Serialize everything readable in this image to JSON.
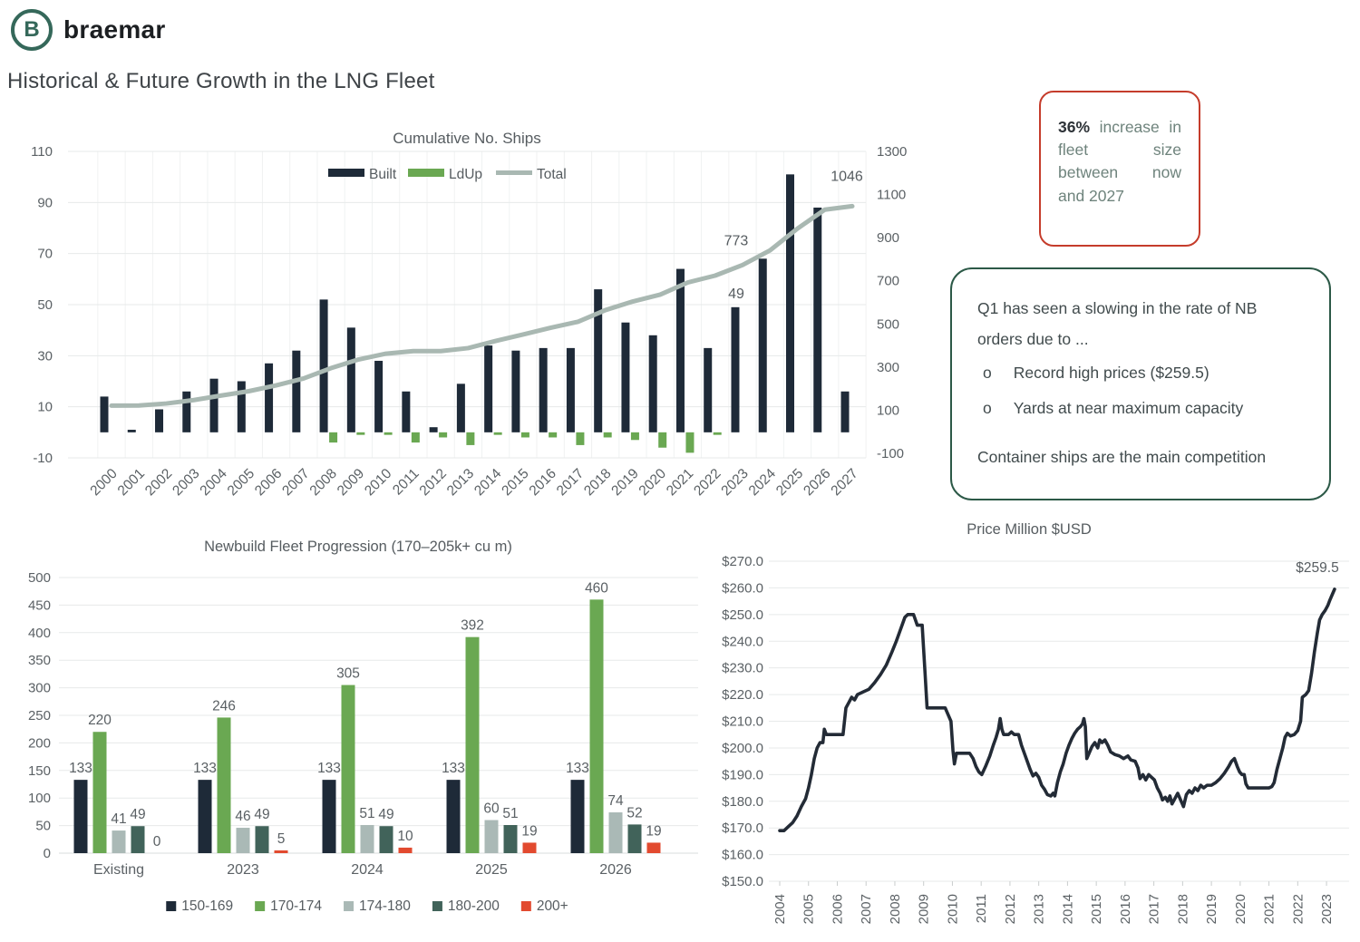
{
  "brand": {
    "logo_text": "braemar",
    "logo_letter": "B",
    "logo_icon": "braemar-b-icon",
    "logo_color": "#35685a"
  },
  "page_title": "Historical & Future Growth in the LNG Fleet",
  "callouts": {
    "fleet_growth": {
      "highlight": "36%",
      "text": "increase in fleet size between now and 2027",
      "border_color": "#c53c2b"
    },
    "nb_orders": {
      "intro": "Q1 has seen a slowing in the rate of NB orders due to ...",
      "bullet_marker": "o",
      "bullets": [
        "Record high prices ($259.5)",
        "Yards at near maximum capacity"
      ],
      "footer": "Container ships are the main competition",
      "border_color": "#2c5947"
    }
  },
  "colors": {
    "navy": "#1e2a38",
    "green": "#6aa852",
    "total_line": "#a9b8b2",
    "light_gray_bar": "#aab9b6",
    "dark_green_bar": "#41635a",
    "red_bar": "#e24a2f",
    "axis_text": "#5b6165",
    "gridline": "#e7eaea",
    "price_line": "#232b36"
  },
  "chart_data": [
    {
      "id": "cumulative_ships",
      "type": "bar+line",
      "title": "Cumulative No. Ships",
      "legend": [
        "Built",
        "LdUp",
        "Total"
      ],
      "categories": [
        "2000",
        "2001",
        "2002",
        "2003",
        "2004",
        "2005",
        "2006",
        "2007",
        "2008",
        "2009",
        "2010",
        "2011",
        "2012",
        "2013",
        "2014",
        "2015",
        "2016",
        "2017",
        "2018",
        "2019",
        "2020",
        "2021",
        "2022",
        "2023",
        "2024",
        "2025",
        "2026",
        "2027"
      ],
      "series": [
        {
          "name": "Built",
          "type": "bar",
          "axis": "left",
          "color": "#1e2a38",
          "values": [
            14,
            1,
            9,
            16,
            21,
            20,
            27,
            32,
            52,
            41,
            28,
            16,
            2,
            19,
            34,
            32,
            33,
            33,
            56,
            43,
            38,
            64,
            33,
            49,
            68,
            101,
            88,
            16
          ]
        },
        {
          "name": "LdUp",
          "type": "bar",
          "axis": "left",
          "color": "#6aa852",
          "values": [
            0,
            0,
            0,
            0,
            0,
            0,
            0,
            0,
            -4,
            -1,
            -1,
            -4,
            -2,
            -5,
            -1,
            -2,
            -2,
            -5,
            -2,
            -3,
            -6,
            -8,
            -1,
            0,
            0,
            0,
            0,
            0
          ]
        },
        {
          "name": "Total",
          "type": "line",
          "axis": "right",
          "color": "#a9b8b2",
          "values": [
            121,
            122,
            131,
            147,
            168,
            188,
            215,
            247,
            295,
            335,
            362,
            374,
            374,
            388,
            421,
            451,
            482,
            510,
            564,
            604,
            636,
            692,
            724,
            773,
            841,
            942,
            1030,
            1046
          ]
        }
      ],
      "left_axis": {
        "min": -10,
        "max": 110,
        "ticks": [
          110,
          90,
          70,
          50,
          30,
          10,
          -10
        ]
      },
      "right_axis": {
        "min": -100,
        "max": 1300,
        "ticks": [
          1300,
          1100,
          900,
          700,
          500,
          300,
          100,
          -100
        ]
      },
      "annotations": [
        {
          "text": "773",
          "category": "2023",
          "anchor": "line"
        },
        {
          "text": "49",
          "category": "2023",
          "anchor": "bar"
        },
        {
          "text": "1046",
          "category": "2027",
          "anchor": "line-end"
        }
      ]
    },
    {
      "id": "newbuild_progression",
      "type": "bar",
      "title": "Newbuild Fleet Progression (170–205k+ cu m)",
      "categories": [
        "Existing",
        "2023",
        "2024",
        "2025",
        "2026"
      ],
      "series": [
        {
          "name": "150-169",
          "color": "#1e2a38",
          "values": [
            133,
            133,
            133,
            133,
            133
          ]
        },
        {
          "name": "170-174",
          "color": "#6aa852",
          "values": [
            220,
            246,
            305,
            392,
            460
          ]
        },
        {
          "name": "174-180",
          "color": "#aab9b6",
          "values": [
            41,
            46,
            51,
            60,
            74
          ]
        },
        {
          "name": "180-200",
          "color": "#41635a",
          "values": [
            49,
            49,
            49,
            51,
            52
          ]
        },
        {
          "name": "200+",
          "color": "#e24a2f",
          "values": [
            0,
            5,
            10,
            19,
            19
          ]
        }
      ],
      "ylim": [
        0,
        500
      ],
      "ytick_step": 50,
      "show_value_labels": true,
      "legend_position": "bottom",
      "grid": true
    },
    {
      "id": "newbuild_price",
      "type": "line",
      "title": "Price Million $USD",
      "color": "#232b36",
      "ylim": [
        150,
        270
      ],
      "y_tick_values": [
        270,
        260,
        250,
        240,
        230,
        220,
        210,
        200,
        190,
        180,
        170,
        160,
        150
      ],
      "y_tick_labels": [
        "$270.0",
        "$260.0",
        "$250.0",
        "$240.0",
        "$230.0",
        "$220.0",
        "$210.0",
        "$200.0",
        "$190.0",
        "$180.0",
        "$170.0",
        "$160.0",
        "$150.0"
      ],
      "x_tick_values": [
        2004,
        2005,
        2006,
        2007,
        2008,
        2009,
        2010,
        2011,
        2012,
        2013,
        2014,
        2015,
        2016,
        2017,
        2018,
        2019,
        2020,
        2021,
        2022,
        2023
      ],
      "x_tick_labels": [
        "2004",
        "2005",
        "2006",
        "2007",
        "2008",
        "2009",
        "2010",
        "2011",
        "2012",
        "2013",
        "2014",
        "2015",
        "2016",
        "2017",
        "2018",
        "2019",
        "2020",
        "2021",
        "2022",
        "2023"
      ],
      "annotation": {
        "text": "$259.5",
        "value": 259.5
      },
      "points": [
        [
          2004.0,
          169
        ],
        [
          2004.15,
          169
        ],
        [
          2004.3,
          170.5
        ],
        [
          2004.45,
          172
        ],
        [
          2004.6,
          174.5
        ],
        [
          2004.75,
          178
        ],
        [
          2004.9,
          181
        ],
        [
          2005.0,
          185
        ],
        [
          2005.1,
          190
        ],
        [
          2005.2,
          196
        ],
        [
          2005.3,
          200
        ],
        [
          2005.4,
          202
        ],
        [
          2005.5,
          202
        ],
        [
          2005.55,
          207
        ],
        [
          2005.62,
          205
        ],
        [
          2005.8,
          205
        ],
        [
          2006.0,
          205
        ],
        [
          2006.2,
          205
        ],
        [
          2006.3,
          215
        ],
        [
          2006.4,
          217
        ],
        [
          2006.5,
          219
        ],
        [
          2006.6,
          218
        ],
        [
          2006.7,
          220
        ],
        [
          2006.9,
          221
        ],
        [
          2007.1,
          222
        ],
        [
          2007.3,
          224.5
        ],
        [
          2007.5,
          227.5
        ],
        [
          2007.7,
          231
        ],
        [
          2007.9,
          236
        ],
        [
          2008.05,
          240
        ],
        [
          2008.15,
          243
        ],
        [
          2008.25,
          246
        ],
        [
          2008.35,
          249
        ],
        [
          2008.45,
          250
        ],
        [
          2008.65,
          250
        ],
        [
          2008.78,
          246
        ],
        [
          2008.95,
          246
        ],
        [
          2009.05,
          228
        ],
        [
          2009.12,
          215
        ],
        [
          2009.3,
          215
        ],
        [
          2009.55,
          215
        ],
        [
          2009.75,
          215
        ],
        [
          2009.85,
          212.5
        ],
        [
          2009.95,
          210
        ],
        [
          2010.02,
          199
        ],
        [
          2010.07,
          194
        ],
        [
          2010.14,
          198
        ],
        [
          2010.35,
          198
        ],
        [
          2010.6,
          198
        ],
        [
          2010.72,
          196
        ],
        [
          2010.82,
          193
        ],
        [
          2010.92,
          191
        ],
        [
          2011.02,
          190
        ],
        [
          2011.15,
          193
        ],
        [
          2011.3,
          197
        ],
        [
          2011.42,
          201
        ],
        [
          2011.52,
          204
        ],
        [
          2011.6,
          207
        ],
        [
          2011.66,
          211
        ],
        [
          2011.72,
          207
        ],
        [
          2011.78,
          205
        ],
        [
          2011.95,
          205
        ],
        [
          2012.05,
          206
        ],
        [
          2012.15,
          205
        ],
        [
          2012.3,
          205
        ],
        [
          2012.4,
          201
        ],
        [
          2012.5,
          198
        ],
        [
          2012.6,
          195
        ],
        [
          2012.7,
          192
        ],
        [
          2012.8,
          189.5
        ],
        [
          2012.9,
          190.5
        ],
        [
          2013.0,
          189
        ],
        [
          2013.1,
          186
        ],
        [
          2013.2,
          184.5
        ],
        [
          2013.3,
          182.5
        ],
        [
          2013.42,
          182
        ],
        [
          2013.5,
          183
        ],
        [
          2013.56,
          182
        ],
        [
          2013.65,
          187
        ],
        [
          2013.75,
          191
        ],
        [
          2013.85,
          194
        ],
        [
          2013.95,
          198
        ],
        [
          2014.05,
          201
        ],
        [
          2014.15,
          203.5
        ],
        [
          2014.25,
          205.5
        ],
        [
          2014.35,
          207
        ],
        [
          2014.45,
          208
        ],
        [
          2014.52,
          209
        ],
        [
          2014.57,
          211
        ],
        [
          2014.62,
          208
        ],
        [
          2014.67,
          196
        ],
        [
          2014.75,
          198
        ],
        [
          2014.85,
          200.5
        ],
        [
          2014.95,
          202
        ],
        [
          2015.05,
          200
        ],
        [
          2015.12,
          203
        ],
        [
          2015.2,
          202
        ],
        [
          2015.3,
          203
        ],
        [
          2015.4,
          201
        ],
        [
          2015.5,
          198.5
        ],
        [
          2015.65,
          197.5
        ],
        [
          2015.8,
          197
        ],
        [
          2015.95,
          196
        ],
        [
          2016.1,
          197
        ],
        [
          2016.2,
          195.5
        ],
        [
          2016.35,
          195
        ],
        [
          2016.45,
          192.5
        ],
        [
          2016.52,
          188.5
        ],
        [
          2016.62,
          190
        ],
        [
          2016.72,
          188
        ],
        [
          2016.82,
          190
        ],
        [
          2016.92,
          189
        ],
        [
          2017.02,
          188
        ],
        [
          2017.12,
          185
        ],
        [
          2017.22,
          183
        ],
        [
          2017.3,
          180.5
        ],
        [
          2017.4,
          181.5
        ],
        [
          2017.48,
          180
        ],
        [
          2017.56,
          182
        ],
        [
          2017.63,
          179
        ],
        [
          2017.73,
          181
        ],
        [
          2017.83,
          183
        ],
        [
          2017.93,
          180.5
        ],
        [
          2018.03,
          178
        ],
        [
          2018.13,
          182.5
        ],
        [
          2018.23,
          184
        ],
        [
          2018.33,
          183
        ],
        [
          2018.43,
          185
        ],
        [
          2018.53,
          184
        ],
        [
          2018.63,
          186
        ],
        [
          2018.73,
          185
        ],
        [
          2018.85,
          186
        ],
        [
          2019.0,
          186
        ],
        [
          2019.15,
          187
        ],
        [
          2019.3,
          188.5
        ],
        [
          2019.45,
          190.5
        ],
        [
          2019.6,
          193
        ],
        [
          2019.7,
          195
        ],
        [
          2019.8,
          196
        ],
        [
          2019.9,
          193
        ],
        [
          2019.98,
          191
        ],
        [
          2020.06,
          190
        ],
        [
          2020.14,
          190
        ],
        [
          2020.2,
          186.5
        ],
        [
          2020.28,
          185
        ],
        [
          2020.5,
          185
        ],
        [
          2020.75,
          185
        ],
        [
          2021.0,
          185
        ],
        [
          2021.1,
          185.5
        ],
        [
          2021.18,
          187
        ],
        [
          2021.28,
          192
        ],
        [
          2021.38,
          196
        ],
        [
          2021.48,
          200
        ],
        [
          2021.56,
          204
        ],
        [
          2021.64,
          205.5
        ],
        [
          2021.75,
          204.5
        ],
        [
          2021.88,
          205
        ],
        [
          2022.0,
          206.5
        ],
        [
          2022.1,
          210
        ],
        [
          2022.16,
          219
        ],
        [
          2022.28,
          220
        ],
        [
          2022.38,
          221.5
        ],
        [
          2022.48,
          228
        ],
        [
          2022.58,
          236
        ],
        [
          2022.68,
          243
        ],
        [
          2022.76,
          248
        ],
        [
          2022.85,
          250
        ],
        [
          2022.95,
          251.5
        ],
        [
          2023.05,
          253.5
        ],
        [
          2023.12,
          255.5
        ],
        [
          2023.2,
          257.5
        ],
        [
          2023.28,
          259.5
        ]
      ]
    }
  ]
}
